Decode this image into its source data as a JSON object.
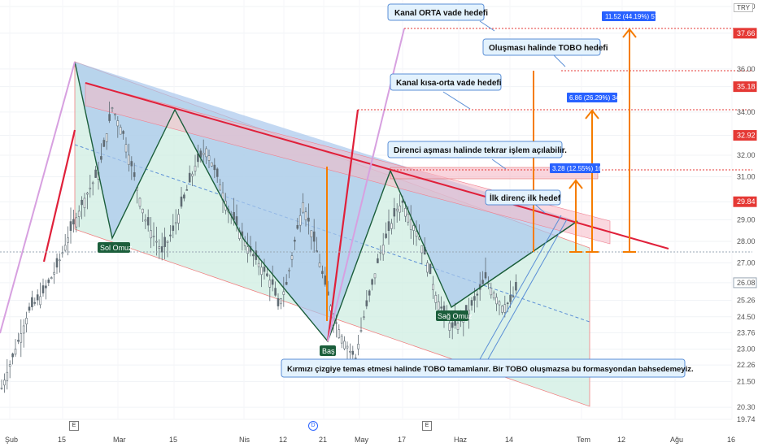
{
  "currency": "TRY",
  "colors": {
    "candle": "#5f6b73",
    "channel_fill": "#cfeee1",
    "triangle_fill": "#a9c8ec",
    "red_line": "#e0203a",
    "orange": "#f57c00",
    "pink_band": "#f5b8c4",
    "label_blue": "#2962ff",
    "pattern_label": "#1b5e3b",
    "red_badge": "#e53935",
    "current_badge": "#ffffff"
  },
  "chart_data": {
    "type": "candlestick",
    "x_ticks": [
      "Şub",
      "15",
      "Mar",
      "15",
      "Nis",
      "12",
      "21",
      "May",
      "17",
      "Haz",
      "14",
      "Tem",
      "12",
      "Ağu",
      "16"
    ],
    "y_ticks": [
      "38.90",
      "37.66",
      "36.00",
      "35.18",
      "34.00",
      "32.92",
      "32.00",
      "31.00",
      "29.84",
      "29.00",
      "28.00",
      "27.00",
      "26.08",
      "25.26",
      "24.50",
      "23.76",
      "23.00",
      "22.26",
      "21.50",
      "20.30",
      "19.74"
    ],
    "highlighted_levels": [
      {
        "value": "37.66",
        "style": "red"
      },
      {
        "value": "35.18",
        "style": "red"
      },
      {
        "value": "32.92",
        "style": "red"
      },
      {
        "value": "29.84",
        "style": "red"
      },
      {
        "value": "26.08",
        "style": "current"
      }
    ],
    "price_path": [
      [
        0,
        21.2
      ],
      [
        5,
        23.0
      ],
      [
        10,
        24.8
      ],
      [
        15,
        25.6
      ],
      [
        20,
        26.8
      ],
      [
        25,
        28.5
      ],
      [
        30,
        30.0
      ],
      [
        35,
        31.2
      ],
      [
        38,
        33.0
      ],
      [
        40,
        34.2
      ],
      [
        44,
        33.0
      ],
      [
        48,
        31.0
      ],
      [
        52,
        29.0
      ],
      [
        56,
        28.0
      ],
      [
        58,
        27.5
      ],
      [
        62,
        28.5
      ],
      [
        66,
        30.0
      ],
      [
        70,
        31.5
      ],
      [
        74,
        32.3
      ],
      [
        78,
        31.0
      ],
      [
        82,
        29.5
      ],
      [
        86,
        28.5
      ],
      [
        90,
        27.5
      ],
      [
        94,
        26.8
      ],
      [
        98,
        26.0
      ],
      [
        100,
        25.0
      ],
      [
        103,
        26.0
      ],
      [
        106,
        28.0
      ],
      [
        109,
        29.8
      ],
      [
        112,
        28.5
      ],
      [
        115,
        27.0
      ],
      [
        118,
        25.5
      ],
      [
        120,
        24.5
      ],
      [
        123,
        23.6
      ],
      [
        126,
        22.9
      ],
      [
        128,
        22.6
      ],
      [
        131,
        24.5
      ],
      [
        134,
        26.0
      ],
      [
        137,
        27.5
      ],
      [
        140,
        28.5
      ],
      [
        143,
        29.5
      ],
      [
        145,
        29.8
      ],
      [
        148,
        29.0
      ],
      [
        151,
        28.2
      ],
      [
        154,
        27.0
      ],
      [
        157,
        25.5
      ],
      [
        160,
        24.6
      ],
      [
        163,
        24.0
      ],
      [
        166,
        24.3
      ],
      [
        169,
        24.8
      ],
      [
        172,
        25.5
      ],
      [
        175,
        26.3
      ],
      [
        178,
        25.6
      ],
      [
        181,
        25.0
      ],
      [
        184,
        25.2
      ],
      [
        187,
        26.0
      ]
    ],
    "pattern_labels": [
      "Sol Omuz",
      "Baş",
      "Sağ Omuz"
    ],
    "measurements": [
      {
        "label": "3.28 (12.55%) 164"
      },
      {
        "label": "6.86 (26.29%) 343"
      },
      {
        "label": "11.52 (44.19%) 576"
      }
    ]
  },
  "annotations": [
    "Kanal ORTA vade hedefi",
    "Oluşması halinde TOBO hedefi",
    "Kanal kısa-orta vade hedefi",
    "Direnci aşması halinde tekrar işlem açılabilir.",
    "İlk direnç ilk hedef",
    "Kırmızı çizgiye temas etmesi halinde TOBO tamamlanır. Bir TOBO oluşmazsa bu formasyondan bahsedemeyiz."
  ],
  "events": [
    "E",
    "D",
    "E"
  ]
}
